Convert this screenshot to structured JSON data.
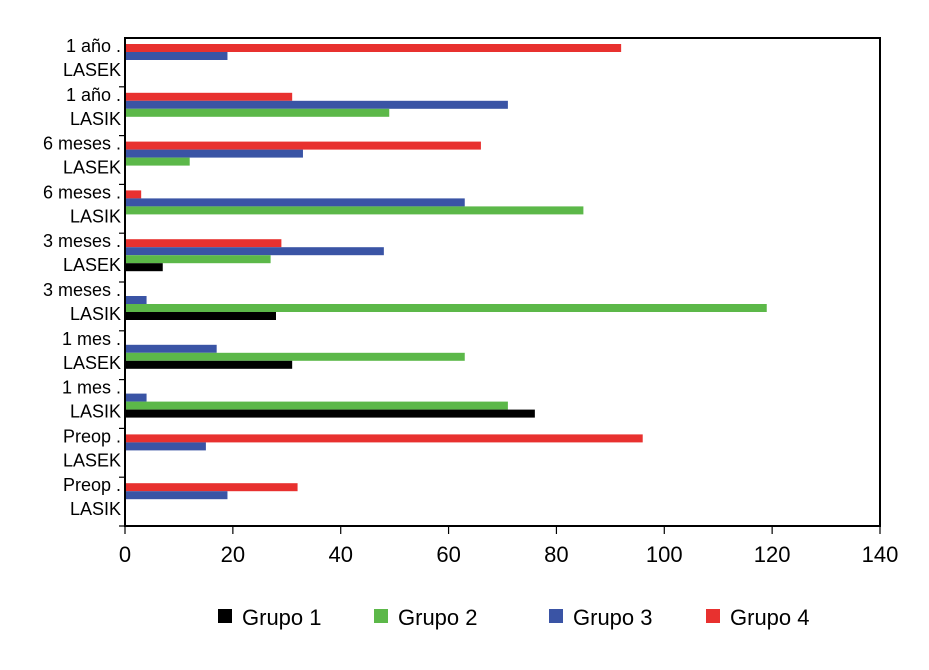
{
  "chart_data": {
    "type": "bar",
    "orientation": "horizontal",
    "title": "",
    "xlabel": "",
    "ylabel": "",
    "xlim": [
      0,
      140
    ],
    "x_ticks": [
      0,
      20,
      40,
      60,
      80,
      100,
      120,
      140
    ],
    "grid": false,
    "legend_position": "bottom",
    "categories": [
      [
        "1 año .",
        "LASEK"
      ],
      [
        "1 año .",
        "LASIK"
      ],
      [
        "6 meses .",
        "LASEK"
      ],
      [
        "6 meses .",
        "LASIK"
      ],
      [
        "3 meses .",
        "LASEK"
      ],
      [
        "3 meses .",
        "LASIK"
      ],
      [
        "1 mes .",
        "LASEK"
      ],
      [
        "1 mes .",
        "LASIK"
      ],
      [
        "Preop .",
        "LASEK"
      ],
      [
        "Preop .",
        "LASIK"
      ]
    ],
    "series": [
      {
        "name": "Grupo 1",
        "color": "#000000",
        "values": [
          null,
          null,
          null,
          null,
          7,
          28,
          31,
          76,
          null,
          null
        ]
      },
      {
        "name": "Grupo 2",
        "color": "#5cb849",
        "values": [
          null,
          49,
          12,
          85,
          27,
          119,
          63,
          71,
          null,
          null
        ]
      },
      {
        "name": "Grupo 3",
        "color": "#3a54a5",
        "values": [
          19,
          71,
          33,
          63,
          48,
          4,
          17,
          4,
          15,
          19
        ]
      },
      {
        "name": "Grupo 4",
        "color": "#e8312f",
        "values": [
          92,
          31,
          66,
          3,
          29,
          null,
          null,
          null,
          96,
          32
        ]
      }
    ]
  }
}
